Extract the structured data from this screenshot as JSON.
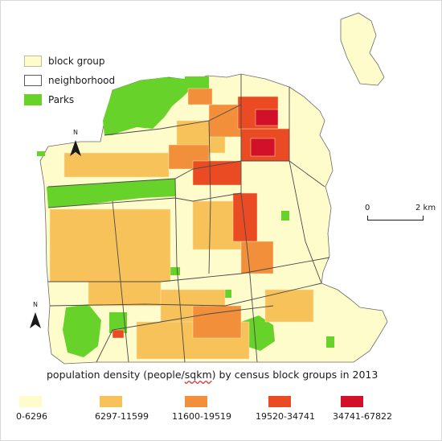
{
  "legend": {
    "items": [
      {
        "label": "block group",
        "symbol": "block-group"
      },
      {
        "label": "neighborhood",
        "symbol": "neighborhood"
      },
      {
        "label": "Parks",
        "symbol": "parks"
      }
    ]
  },
  "title": {
    "before": "population density (people/",
    "underlined": "sqkm",
    "after": ") by census block groups in 2013"
  },
  "scale_bar": {
    "start": "0",
    "end": "2 km"
  },
  "north_arrow": {
    "letter": "N"
  },
  "density_classes": [
    {
      "label": "0-6296",
      "color": "#fffccb"
    },
    {
      "label": "6297-11599",
      "color": "#f8c25a"
    },
    {
      "label": "11600-19519",
      "color": "#f18f3b"
    },
    {
      "label": "19520-34741",
      "color": "#ea4b23"
    },
    {
      "label": "34741-67822",
      "color": "#d3102a"
    }
  ],
  "colors": {
    "land": "#fffccb",
    "park": "#66d22a",
    "boundary": "#4a4a4a",
    "block_line": "#f4e6b0"
  }
}
